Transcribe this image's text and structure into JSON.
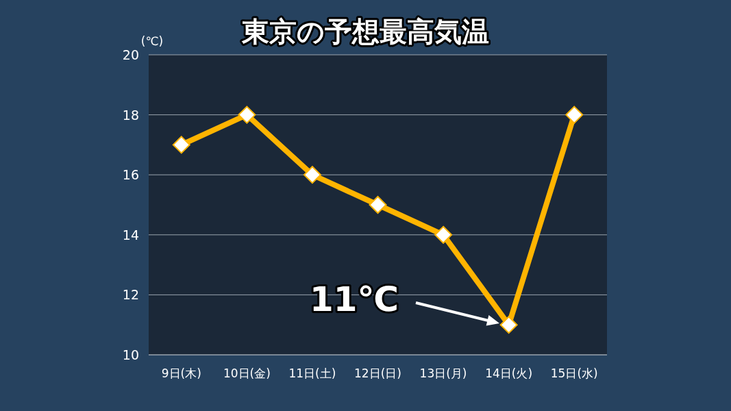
{
  "chart_data": {
    "type": "line",
    "title": "東京の予想最高気温",
    "ylabel": "(℃)",
    "categories": [
      "9日(木)",
      "10日(金)",
      "11日(土)",
      "12日(日)",
      "13日(月)",
      "14日(火)",
      "15日(水)"
    ],
    "series": [
      {
        "color": "#ffb400",
        "values": [
          17,
          18,
          16,
          15,
          14,
          11,
          18
        ]
      }
    ],
    "ylim": [
      10,
      20
    ],
    "yticks": [
      10,
      12,
      14,
      16,
      18,
      20
    ],
    "grid": "y",
    "marker": "diamond",
    "annotations": [
      "11℃"
    ]
  }
}
